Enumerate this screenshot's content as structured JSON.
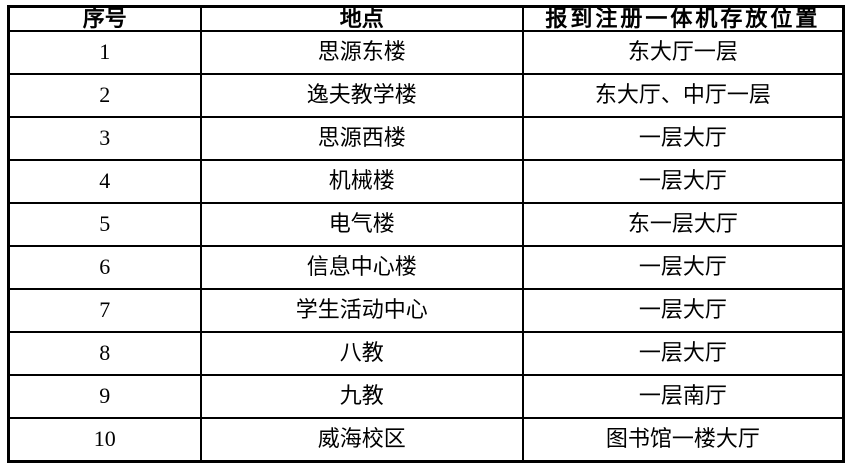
{
  "table": {
    "headers": {
      "serial": "序号",
      "location": "地点",
      "position": "报到注册一体机存放位置"
    },
    "rows": [
      {
        "serial": "1",
        "location": "思源东楼",
        "position": "东大厅一层"
      },
      {
        "serial": "2",
        "location": "逸夫教学楼",
        "position": "东大厅、中厅一层"
      },
      {
        "serial": "3",
        "location": "思源西楼",
        "position": "一层大厅"
      },
      {
        "serial": "4",
        "location": "机械楼",
        "position": "一层大厅"
      },
      {
        "serial": "5",
        "location": "电气楼",
        "position": "东一层大厅"
      },
      {
        "serial": "6",
        "location": "信息中心楼",
        "position": "一层大厅"
      },
      {
        "serial": "7",
        "location": "学生活动中心",
        "position": "一层大厅"
      },
      {
        "serial": "8",
        "location": "八教",
        "position": "一层大厅"
      },
      {
        "serial": "9",
        "location": "九教",
        "position": "一层南厅"
      },
      {
        "serial": "10",
        "location": "威海校区",
        "position": "图书馆一楼大厅"
      }
    ],
    "colors": {
      "border": "#000000",
      "background": "#ffffff",
      "text": "#000000"
    }
  }
}
